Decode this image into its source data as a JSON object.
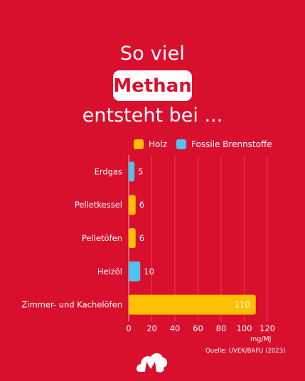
{
  "title": {
    "line1": "So viel",
    "highlight": "Methan",
    "line3": "entsteht bei ..."
  },
  "colors": {
    "background": "#d8102d",
    "holz": "#ffc000",
    "fossil": "#4ec3ef"
  },
  "chart_data": {
    "type": "bar",
    "orientation": "horizontal",
    "categories": [
      "Erdgas",
      "Pelletkessel",
      "Pelletöfen",
      "Heizöl",
      "Zimmer- und Kachelöfen"
    ],
    "values": [
      5,
      6,
      6,
      10,
      110
    ],
    "value_labels": [
      "5",
      "6",
      "6",
      "10",
      "110"
    ],
    "series_type": [
      "Fossile Brennstoffe",
      "Holz",
      "Holz",
      "Fossile Brennstoffe",
      "Holz"
    ],
    "legend": [
      {
        "name": "Holz",
        "color": "#ffc000"
      },
      {
        "name": "Fossile Brennstoffe",
        "color": "#4ec3ef"
      }
    ],
    "xlim": [
      0,
      120
    ],
    "xticks": [
      "0",
      "20",
      "40",
      "60",
      "80",
      "100",
      "120"
    ],
    "xlabel": "mg/MJ",
    "grid": true,
    "legend_position": "top"
  },
  "source": "Quelle: UVEK/BAFU (2023)",
  "logo": "brand-logo-icon"
}
